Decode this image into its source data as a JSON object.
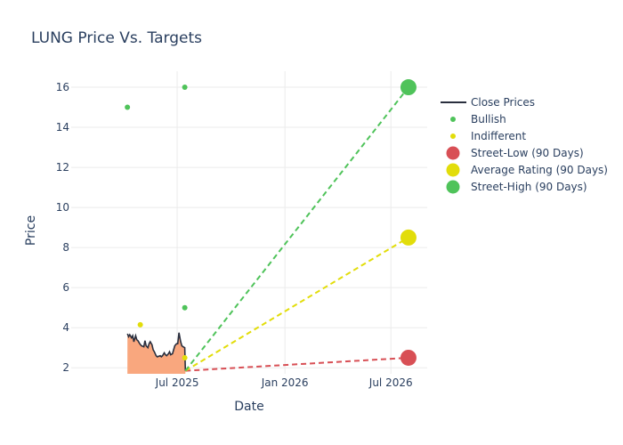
{
  "chart_data": {
    "type": "line",
    "title": "LUNG Price Vs. Targets",
    "xlabel": "Date",
    "ylabel": "Price",
    "x_range": [
      "2025-01-01",
      "2026-09-01"
    ],
    "ylim": [
      1.7,
      16.8
    ],
    "x_ticks": [
      {
        "date": "2025-07-01",
        "label": "Jul 2025"
      },
      {
        "date": "2026-01-01",
        "label": "Jan 2026"
      },
      {
        "date": "2026-07-01",
        "label": "Jul 2026"
      }
    ],
    "y_ticks": [
      2,
      4,
      6,
      8,
      10,
      12,
      14,
      16
    ],
    "grid": true,
    "legend_position": "right",
    "close_prices": {
      "name": "Close Prices",
      "color": "#2a2f3e",
      "fill_color": "#f9a77e",
      "points": [
        [
          "2025-04-07",
          3.7
        ],
        [
          "2025-04-09",
          3.55
        ],
        [
          "2025-04-11",
          3.65
        ],
        [
          "2025-04-14",
          3.5
        ],
        [
          "2025-04-16",
          3.6
        ],
        [
          "2025-04-18",
          3.3
        ],
        [
          "2025-04-21",
          3.6
        ],
        [
          "2025-04-23",
          3.4
        ],
        [
          "2025-04-25",
          3.35
        ],
        [
          "2025-04-28",
          3.2
        ],
        [
          "2025-05-01",
          3.1
        ],
        [
          "2025-05-05",
          3.05
        ],
        [
          "2025-05-07",
          3.35
        ],
        [
          "2025-05-09",
          3.1
        ],
        [
          "2025-05-12",
          3.0
        ],
        [
          "2025-05-14",
          3.2
        ],
        [
          "2025-05-16",
          3.3
        ],
        [
          "2025-05-19",
          3.15
        ],
        [
          "2025-05-21",
          2.9
        ],
        [
          "2025-05-23",
          2.8
        ],
        [
          "2025-05-26",
          2.6
        ],
        [
          "2025-05-28",
          2.55
        ],
        [
          "2025-06-02",
          2.6
        ],
        [
          "2025-06-04",
          2.55
        ],
        [
          "2025-06-06",
          2.6
        ],
        [
          "2025-06-09",
          2.75
        ],
        [
          "2025-06-11",
          2.65
        ],
        [
          "2025-06-13",
          2.6
        ],
        [
          "2025-06-16",
          2.7
        ],
        [
          "2025-06-18",
          2.8
        ],
        [
          "2025-06-20",
          2.65
        ],
        [
          "2025-06-23",
          2.7
        ],
        [
          "2025-06-25",
          2.9
        ],
        [
          "2025-06-27",
          3.1
        ],
        [
          "2025-06-30",
          3.2
        ],
        [
          "2025-07-02",
          3.2
        ],
        [
          "2025-07-04",
          3.75
        ],
        [
          "2025-07-07",
          3.3
        ],
        [
          "2025-07-09",
          3.1
        ],
        [
          "2025-07-11",
          3.05
        ],
        [
          "2025-07-14",
          3.0
        ],
        [
          "2025-07-15",
          1.85
        ]
      ]
    },
    "bullish": {
      "name": "Bullish",
      "color": "#4fc35a",
      "points": [
        [
          "2025-04-07",
          15
        ],
        [
          "2025-07-14",
          16
        ],
        [
          "2025-07-14",
          5
        ]
      ]
    },
    "indifferent": {
      "name": "Indifferent",
      "color": "#e2dd0a",
      "points": [
        [
          "2025-04-29",
          4.15
        ],
        [
          "2025-07-14",
          2.5
        ]
      ]
    },
    "targets": [
      {
        "name": "Street-Low (90 Days)",
        "color": "#d84f55",
        "start": [
          "2025-07-15",
          1.85
        ],
        "end": [
          "2026-07-31",
          2.5
        ]
      },
      {
        "name": "Average Rating (90 Days)",
        "color": "#e2dd0a",
        "start": [
          "2025-07-15",
          1.85
        ],
        "end": [
          "2026-07-31",
          8.5
        ]
      },
      {
        "name": "Street-High (90 Days)",
        "color": "#4fc35a",
        "start": [
          "2025-07-15",
          1.85
        ],
        "end": [
          "2026-07-31",
          16
        ]
      }
    ]
  }
}
